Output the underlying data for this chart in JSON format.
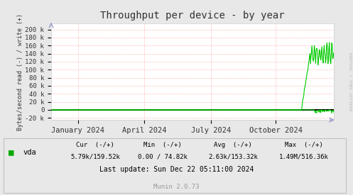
{
  "title": "Throughput per device - by year",
  "ylabel": "Bytes/second read (-) / write (+)",
  "xlabel_ticks": [
    "January 2024",
    "April 2024",
    "July 2024",
    "October 2024"
  ],
  "xlabel_tick_positions": [
    0.095,
    0.33,
    0.565,
    0.795
  ],
  "ylim": [
    -25000,
    215000
  ],
  "yticks": [
    -20000,
    0,
    20000,
    40000,
    60000,
    80000,
    100000,
    120000,
    140000,
    160000,
    180000,
    200000
  ],
  "ytick_labels": [
    "-20 k",
    "0",
    "20 k",
    "40 k",
    "60 k",
    "80 k",
    "100 k",
    "120 k",
    "140 k",
    "160 k",
    "180 k",
    "200 k"
  ],
  "bg_color": "#e8e8e8",
  "plot_bg_color": "#ffffff",
  "grid_color": "#ff9999",
  "line_color": "#00cc00",
  "zero_line_color": "#000000",
  "title_color": "#333333",
  "tick_label_color": "#333333",
  "legend_label": "vda",
  "legend_color": "#00aa00",
  "cur_neg": "5.79k",
  "cur_pos": "159.52k",
  "min_neg": "0.00",
  "min_pos": "74.82k",
  "avg_neg": "2.63k",
  "avg_pos": "153.32k",
  "max_neg": "1.49M",
  "max_pos": "516.36k",
  "last_update": "Last update: Sun Dec 22 05:11:00 2024",
  "munin_version": "Munin 2.0.73",
  "rrdtool_label": "RRDTOOL / TOBI OETIKER",
  "figsize": [
    4.97,
    2.75
  ],
  "dpi": 100
}
